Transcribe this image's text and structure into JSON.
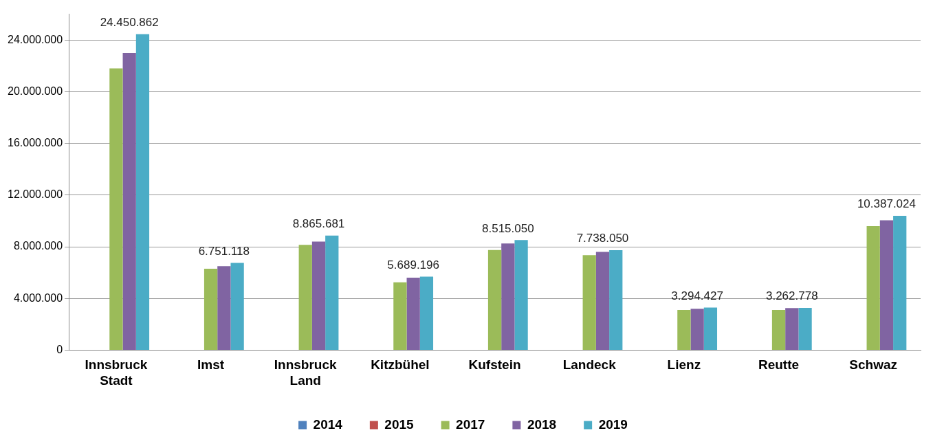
{
  "chart_data": {
    "type": "bar",
    "categories": [
      "Innsbruck Stadt",
      "Imst",
      "Innsbruck Land",
      "Kitzbühel",
      "Kufstein",
      "Landeck",
      "Lienz",
      "Reutte",
      "Schwaz"
    ],
    "series": [
      {
        "name": "2014",
        "color": "#4f81bd",
        "values": [
          null,
          null,
          null,
          null,
          null,
          null,
          null,
          null,
          null
        ]
      },
      {
        "name": "2015",
        "color": "#c0504d",
        "values": [
          null,
          null,
          null,
          null,
          null,
          null,
          null,
          null,
          null
        ]
      },
      {
        "name": "2017",
        "color": "#9bbb59",
        "values": [
          21800000,
          6300000,
          8150000,
          5250000,
          7750000,
          7350000,
          3100000,
          3100000,
          9600000
        ]
      },
      {
        "name": "2018",
        "color": "#8064a2",
        "values": [
          23000000,
          6500000,
          8400000,
          5600000,
          8250000,
          7600000,
          3200000,
          3250000,
          10050000
        ]
      },
      {
        "name": "2019",
        "color": "#4bacc6",
        "values": [
          24450862,
          6751118,
          8865681,
          5689196,
          8515050,
          7738050,
          3294427,
          3262778,
          10387024
        ],
        "value_labels": [
          "24.450.862",
          "6.751.118",
          "8.865.681",
          "5.689.196",
          "8.515.050",
          "7.738.050",
          "3.294.427",
          "3.262.778",
          "10.387.024"
        ]
      }
    ],
    "ylim": [
      0,
      26000000
    ],
    "yticks": [
      0,
      {
        "value": 4000000,
        "label": "4.000.000"
      },
      {
        "value": 8000000,
        "label": "8.000.000"
      },
      {
        "value": 12000000,
        "label": "12.000.000"
      },
      {
        "value": 16000000,
        "label": "16.000.000"
      },
      {
        "value": 20000000,
        "label": "20.000.000"
      },
      {
        "value": 24000000,
        "label": "24.000.000"
      }
    ],
    "grid": "y",
    "legend": "bottom"
  }
}
